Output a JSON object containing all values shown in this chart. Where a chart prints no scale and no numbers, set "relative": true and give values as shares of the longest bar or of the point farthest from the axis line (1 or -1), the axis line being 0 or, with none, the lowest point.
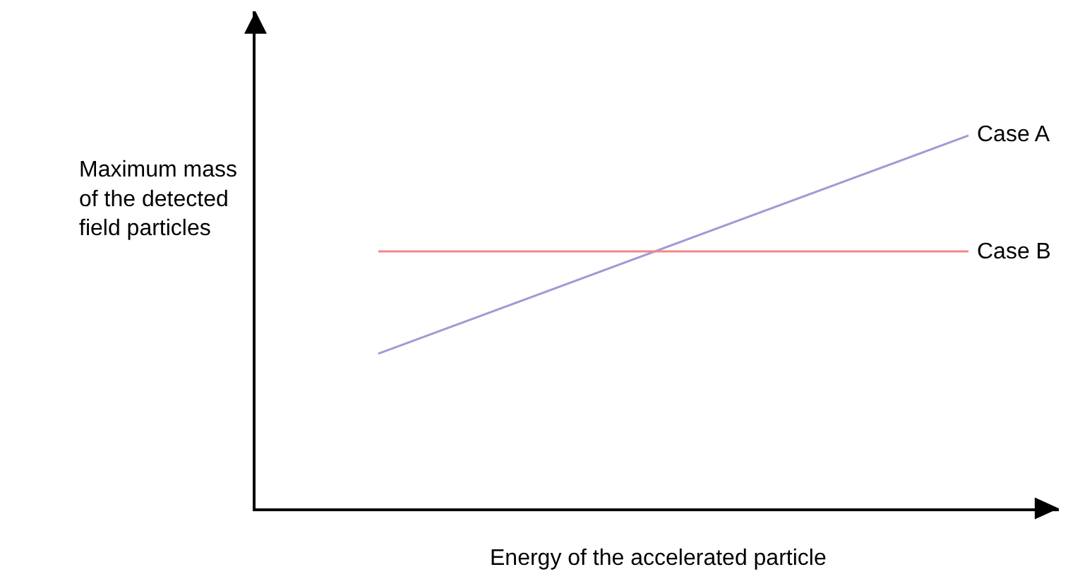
{
  "chart_data": {
    "type": "line",
    "relative": true,
    "xlabel": "Energy of the accelerated particle",
    "ylabel": "Maximum mass\nof the detected\nfield particles",
    "categories": [
      null,
      null
    ],
    "series": [
      {
        "name": "Case A",
        "color": "#a09ad6",
        "values": [
          0.415,
          1
        ]
      },
      {
        "name": "Case B",
        "color": "#f4858a",
        "values": [
          0.689,
          0.689
        ]
      }
    ],
    "marker": "none",
    "line_style": "solid",
    "legend": false
  }
}
